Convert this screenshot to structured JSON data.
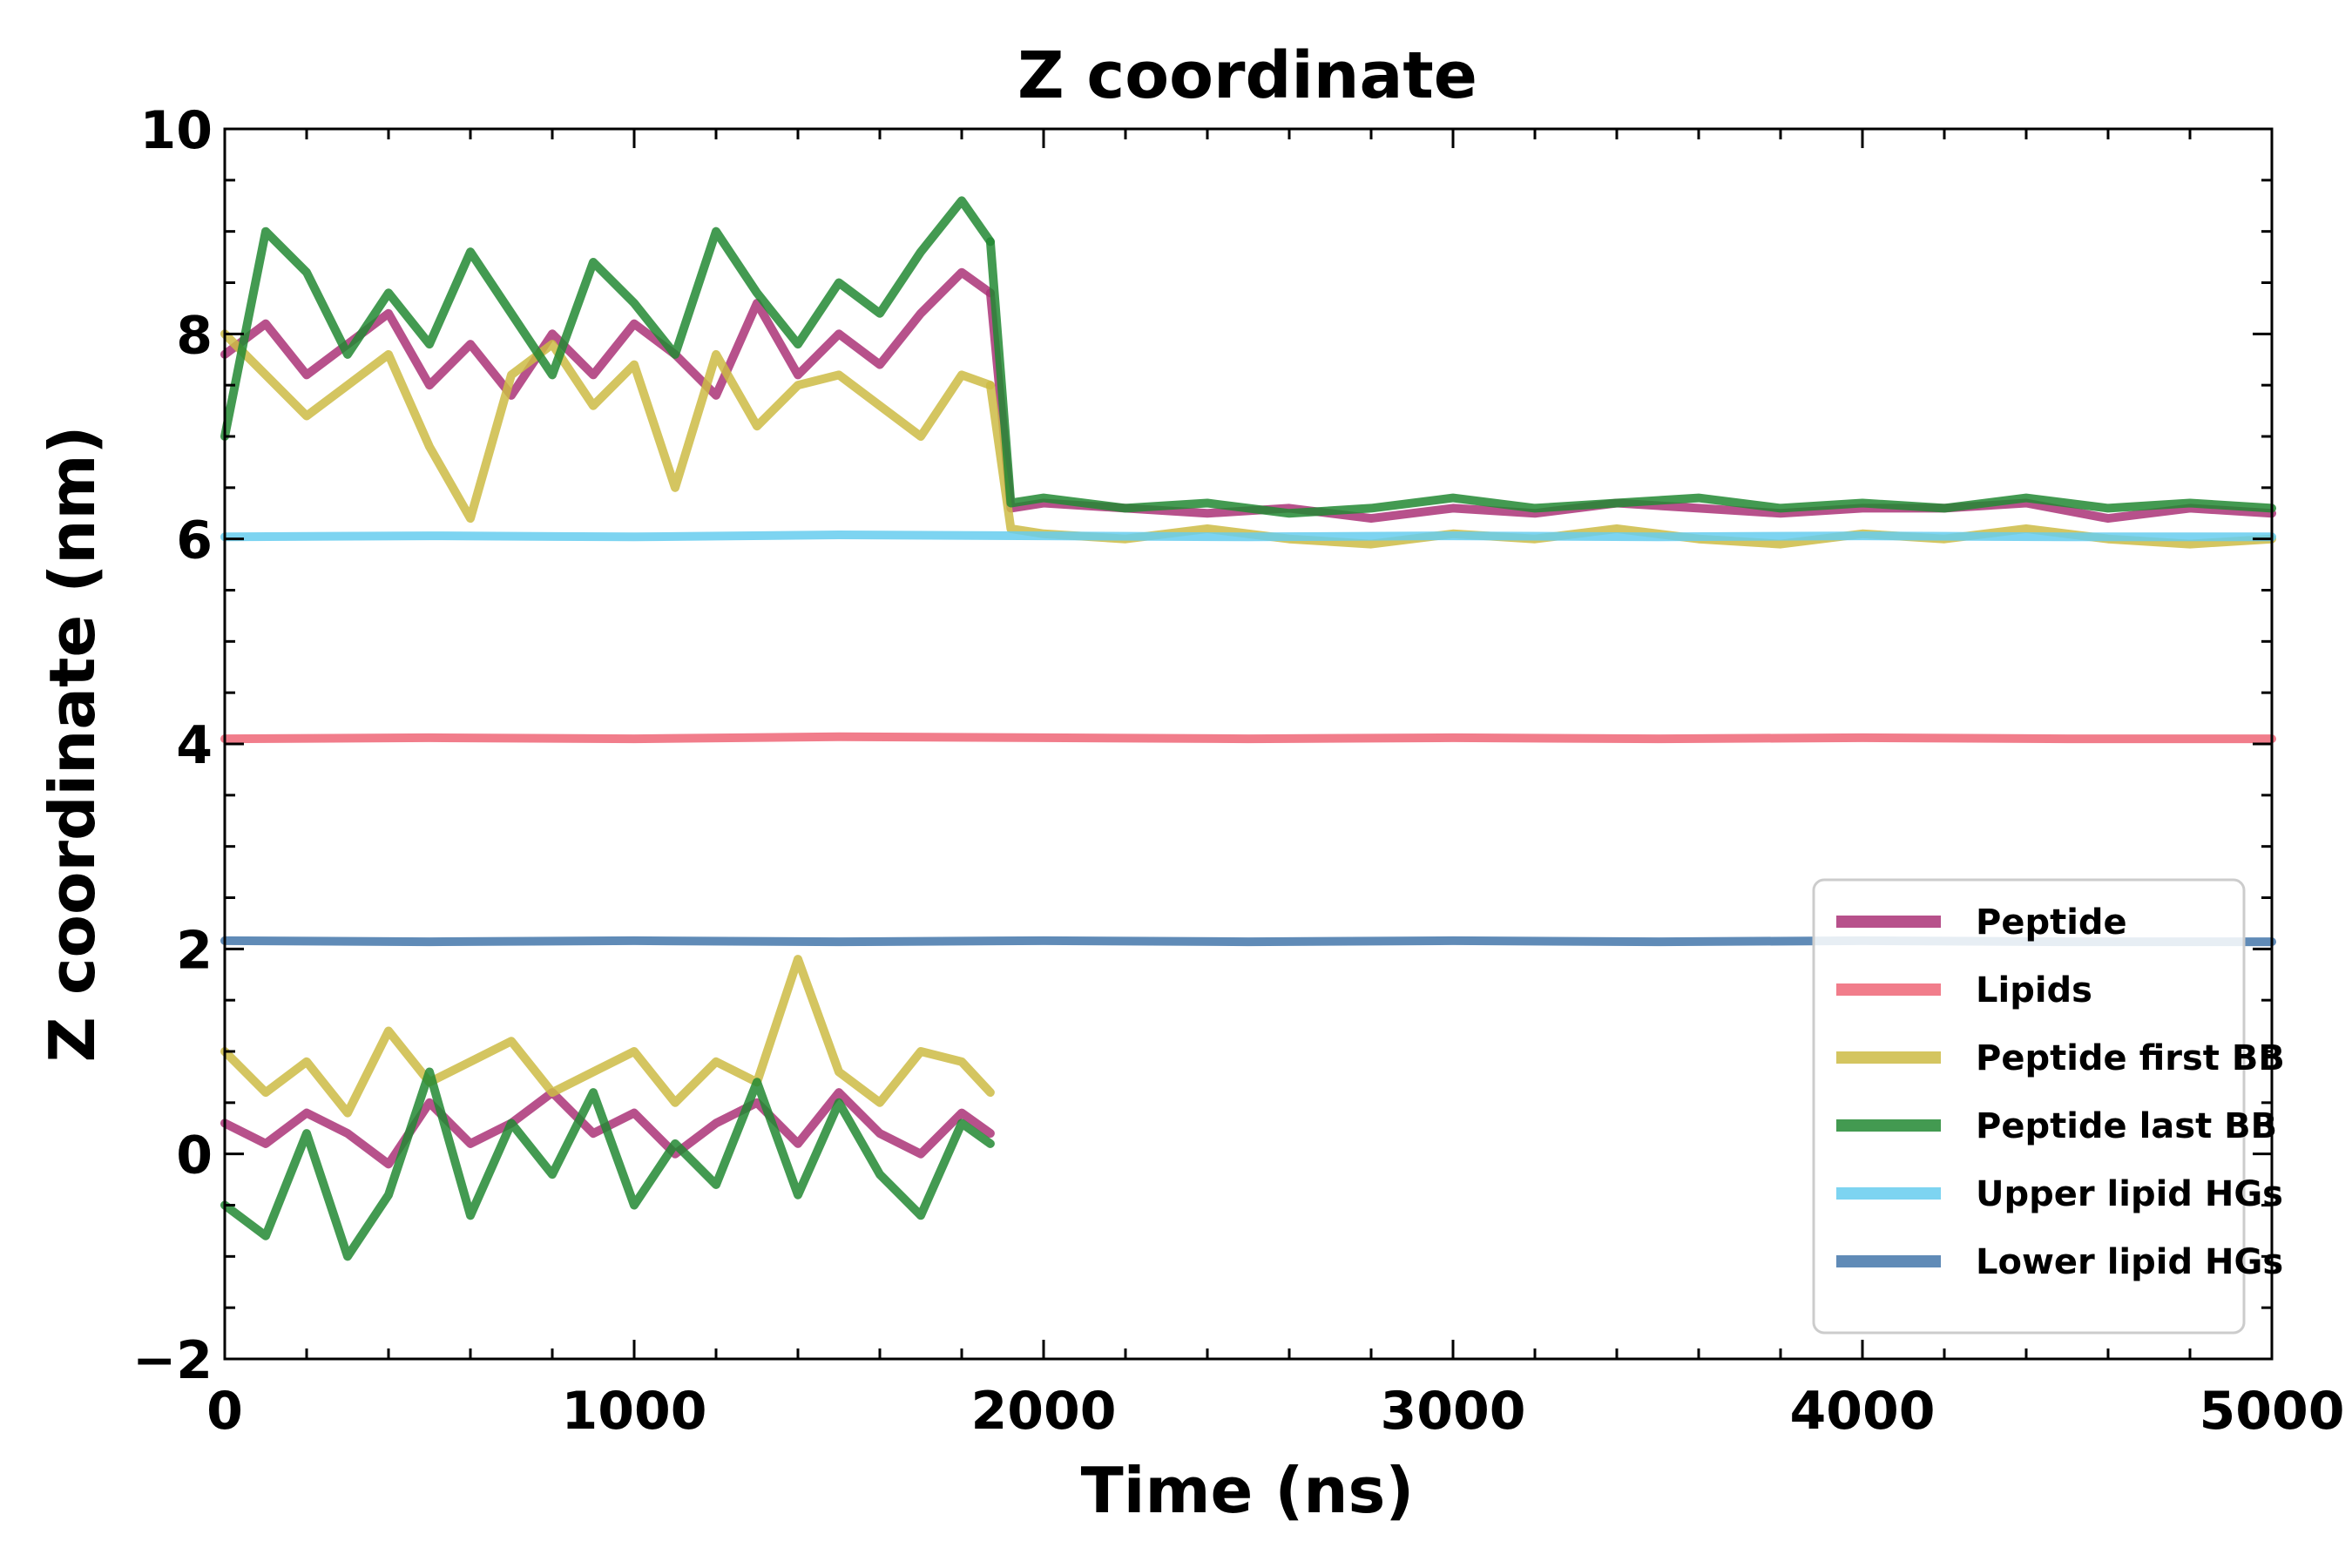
{
  "chart_data": {
    "type": "line",
    "title": "Z coordinate",
    "xlabel": "Time (ns)",
    "ylabel": "Z coordinate (nm)",
    "xlim": [
      0,
      5000
    ],
    "ylim": [
      -2,
      10
    ],
    "x_ticks": [
      0,
      1000,
      2000,
      3000,
      4000,
      5000
    ],
    "y_ticks": [
      -2,
      0,
      2,
      4,
      6,
      8,
      10
    ],
    "x_tick_labels": [
      "0",
      "1000",
      "2000",
      "3000",
      "4000",
      "5000"
    ],
    "y_tick_labels": [
      "−2",
      "0",
      "2",
      "4",
      "6",
      "8",
      "10"
    ],
    "grid": false,
    "legend_position": "lower-right",
    "series": [
      {
        "name": "Peptide",
        "color": "#aa3377",
        "style": "solid",
        "segments": [
          {
            "x": [
              0,
              100,
              200,
              300,
              400,
              500,
              600,
              700,
              800,
              900,
              1000,
              1100,
              1200,
              1300,
              1400,
              1500,
              1600,
              1700,
              1800,
              1870
            ],
            "y": [
              7.8,
              8.1,
              7.6,
              7.9,
              8.2,
              7.5,
              7.9,
              7.4,
              8.0,
              7.6,
              8.1,
              7.8,
              7.4,
              8.3,
              7.6,
              8.0,
              7.7,
              8.2,
              8.6,
              8.4
            ]
          },
          {
            "x": [
              0,
              100,
              200,
              300,
              400,
              500,
              600,
              700,
              800,
              900,
              1000,
              1100,
              1200,
              1300,
              1400,
              1500,
              1600,
              1700,
              1800,
              1870
            ],
            "y": [
              0.3,
              0.1,
              0.4,
              0.2,
              -0.1,
              0.5,
              0.1,
              0.3,
              0.6,
              0.2,
              0.4,
              0.0,
              0.3,
              0.5,
              0.1,
              0.6,
              0.2,
              0.0,
              0.4,
              0.2
            ]
          },
          {
            "x": [
              1870,
              1920,
              2000,
              2200,
              2400,
              2600,
              2800,
              3000,
              3200,
              3400,
              3600,
              3800,
              4000,
              4200,
              4400,
              4600,
              4800,
              5000
            ],
            "y": [
              8.4,
              6.3,
              6.35,
              6.3,
              6.25,
              6.3,
              6.2,
              6.3,
              6.25,
              6.35,
              6.3,
              6.25,
              6.3,
              6.3,
              6.35,
              6.2,
              6.3,
              6.25
            ]
          }
        ]
      },
      {
        "name": "Lipids",
        "color": "#ee6677",
        "style": "solid",
        "segments": [
          {
            "x": [
              0,
              500,
              1000,
              1500,
              2000,
              2500,
              3000,
              3500,
              4000,
              4500,
              5000
            ],
            "y": [
              4.05,
              4.06,
              4.05,
              4.07,
              4.06,
              4.05,
              4.06,
              4.05,
              4.06,
              4.05,
              4.05
            ]
          }
        ]
      },
      {
        "name": "Peptide first BB",
        "color": "#ccbb44",
        "style": "solid",
        "segments": [
          {
            "x": [
              0,
              100,
              200,
              300,
              400,
              500,
              600,
              700,
              800,
              900,
              1000,
              1100,
              1200,
              1300,
              1400,
              1500,
              1600,
              1700,
              1800,
              1870
            ],
            "y": [
              8.0,
              7.6,
              7.2,
              7.5,
              7.8,
              6.9,
              6.2,
              7.6,
              7.9,
              7.3,
              7.7,
              6.5,
              7.8,
              7.1,
              7.5,
              7.6,
              7.3,
              7.0,
              7.6,
              7.5
            ]
          },
          {
            "x": [
              0,
              100,
              200,
              300,
              400,
              500,
              600,
              700,
              800,
              900,
              1000,
              1100,
              1200,
              1300,
              1400,
              1500,
              1600,
              1700,
              1800,
              1870
            ],
            "y": [
              1.0,
              0.6,
              0.9,
              0.4,
              1.2,
              0.7,
              0.9,
              1.1,
              0.6,
              0.8,
              1.0,
              0.5,
              0.9,
              0.7,
              1.9,
              0.8,
              0.5,
              1.0,
              0.9,
              0.6
            ]
          },
          {
            "x": [
              1870,
              1920,
              2000,
              2200,
              2400,
              2600,
              2800,
              3000,
              3200,
              3400,
              3600,
              3800,
              4000,
              4200,
              4400,
              4600,
              4800,
              5000
            ],
            "y": [
              7.5,
              6.1,
              6.05,
              6.0,
              6.1,
              6.0,
              5.95,
              6.05,
              6.0,
              6.1,
              6.0,
              5.95,
              6.05,
              6.0,
              6.1,
              6.0,
              5.95,
              6.0
            ]
          }
        ]
      },
      {
        "name": "Peptide last BB",
        "color": "#228833",
        "style": "solid",
        "segments": [
          {
            "x": [
              0,
              100,
              200,
              300,
              400,
              500,
              600,
              700,
              800,
              900,
              1000,
              1100,
              1200,
              1300,
              1400,
              1500,
              1600,
              1700,
              1800,
              1870
            ],
            "y": [
              7.0,
              9.0,
              8.6,
              7.8,
              8.4,
              7.9,
              8.8,
              8.2,
              7.6,
              8.7,
              8.3,
              7.8,
              9.0,
              8.4,
              7.9,
              8.5,
              8.2,
              8.8,
              9.3,
              8.9
            ]
          },
          {
            "x": [
              0,
              100,
              200,
              300,
              400,
              500,
              600,
              700,
              800,
              900,
              1000,
              1100,
              1200,
              1300,
              1400,
              1500,
              1600,
              1700,
              1800,
              1870
            ],
            "y": [
              -0.5,
              -0.8,
              0.2,
              -1.0,
              -0.4,
              0.8,
              -0.6,
              0.3,
              -0.2,
              0.6,
              -0.5,
              0.1,
              -0.3,
              0.7,
              -0.4,
              0.5,
              -0.2,
              -0.6,
              0.3,
              0.1
            ]
          },
          {
            "x": [
              1870,
              1920,
              2000,
              2200,
              2400,
              2600,
              2800,
              3000,
              3200,
              3400,
              3600,
              3800,
              4000,
              4200,
              4400,
              4600,
              4800,
              5000
            ],
            "y": [
              8.9,
              6.35,
              6.4,
              6.3,
              6.35,
              6.25,
              6.3,
              6.4,
              6.3,
              6.35,
              6.4,
              6.3,
              6.35,
              6.3,
              6.4,
              6.3,
              6.35,
              6.3
            ]
          }
        ]
      },
      {
        "name": "Upper lipid HGs",
        "color": "#66ccee",
        "style": "solid",
        "segments": [
          {
            "x": [
              0,
              500,
              1000,
              1500,
              2000,
              2500,
              3000,
              3500,
              4000,
              4500,
              5000
            ],
            "y": [
              6.02,
              6.03,
              6.02,
              6.04,
              6.03,
              6.02,
              6.03,
              6.02,
              6.03,
              6.02,
              6.02
            ]
          }
        ]
      },
      {
        "name": "Lower lipid HGs",
        "color": "#4477aa",
        "style": "solid",
        "segments": [
          {
            "x": [
              0,
              500,
              1000,
              1500,
              2000,
              2500,
              3000,
              3500,
              4000,
              4500,
              5000
            ],
            "y": [
              2.08,
              2.07,
              2.08,
              2.07,
              2.08,
              2.07,
              2.08,
              2.07,
              2.08,
              2.07,
              2.07
            ]
          }
        ]
      }
    ]
  }
}
